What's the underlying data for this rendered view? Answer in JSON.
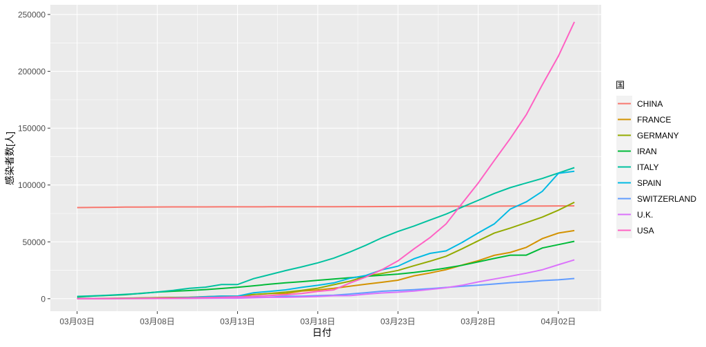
{
  "chart_data": {
    "type": "line",
    "title": "",
    "xlabel": "日付",
    "ylabel": "感染者数[人]",
    "ylim": [
      -11000,
      258500
    ],
    "grid": true,
    "legend_position": "right",
    "legend_title": "国",
    "x": [
      "03-03",
      "03-04",
      "03-05",
      "03-06",
      "03-07",
      "03-08",
      "03-09",
      "03-10",
      "03-11",
      "03-12",
      "03-13",
      "03-14",
      "03-15",
      "03-16",
      "03-17",
      "03-18",
      "03-19",
      "03-20",
      "03-21",
      "03-22",
      "03-23",
      "03-24",
      "03-25",
      "03-26",
      "03-27",
      "03-28",
      "03-29",
      "03-30",
      "03-31",
      "04-01",
      "04-02",
      "04-03"
    ],
    "x_ticks": [
      {
        "index": 0,
        "label": "03月03日"
      },
      {
        "index": 5,
        "label": "03月08日"
      },
      {
        "index": 10,
        "label": "03月13日"
      },
      {
        "index": 15,
        "label": "03月18日"
      },
      {
        "index": 20,
        "label": "03月23日"
      },
      {
        "index": 25,
        "label": "03月28日"
      },
      {
        "index": 30,
        "label": "04月02日"
      }
    ],
    "y_ticks": [
      0,
      50000,
      100000,
      150000,
      200000,
      250000
    ],
    "series": [
      {
        "name": "CHINA",
        "color": "#F8766D",
        "values": [
          80151,
          80270,
          80409,
          80552,
          80651,
          80695,
          80735,
          80754,
          80778,
          80793,
          80813,
          80824,
          80844,
          80860,
          80881,
          80894,
          80928,
          80967,
          81008,
          81054,
          81093,
          81171,
          81218,
          81285,
          81340,
          81394,
          81439,
          81470,
          81518,
          81554,
          81601,
          81661
        ]
      },
      {
        "name": "FRANCE",
        "color": "#D39200",
        "values": [
          191,
          204,
          288,
          380,
          656,
          959,
          1136,
          1219,
          1794,
          2293,
          2293,
          3681,
          4496,
          4532,
          6683,
          7715,
          9124,
          10970,
          12758,
          14463,
          16243,
          20123,
          22622,
          25600,
          29551,
          33402,
          38105,
          40708,
          45170,
          52827,
          57749,
          59929
        ]
      },
      {
        "name": "GERMANY",
        "color": "#93AA00",
        "values": [
          159,
          196,
          262,
          482,
          670,
          799,
          1040,
          1176,
          1457,
          1908,
          2078,
          3675,
          4585,
          5795,
          7272,
          9257,
          12327,
          15320,
          19848,
          22213,
          24873,
          29056,
          32986,
          37323,
          43938,
          50871,
          57695,
          62095,
          66885,
          71808,
          77872,
          84794
        ]
      },
      {
        "name": "IRAN",
        "color": "#00BA38",
        "values": [
          1501,
          2336,
          2922,
          3513,
          4747,
          5823,
          6566,
          7161,
          8042,
          9000,
          10075,
          11364,
          12729,
          13938,
          14991,
          16169,
          17361,
          18407,
          19644,
          20610,
          21638,
          23049,
          24811,
          27017,
          29406,
          32332,
          35408,
          38309,
          38309,
          44605,
          47593,
          50468
        ]
      },
      {
        "name": "ITALY",
        "color": "#00C19F",
        "values": [
          2036,
          2502,
          3089,
          3858,
          4636,
          5883,
          7375,
          9172,
          10149,
          12462,
          12462,
          17660,
          21157,
          24747,
          27980,
          31506,
          35713,
          41035,
          47021,
          53578,
          59138,
          63927,
          69176,
          74386,
          80589,
          86498,
          92472,
          97689,
          101739,
          105792,
          110574,
          115242
        ]
      },
      {
        "name": "SPAIN",
        "color": "#00B9E3",
        "values": [
          120,
          165,
          222,
          259,
          400,
          500,
          673,
          1073,
          1695,
          2277,
          2277,
          5232,
          6391,
          7798,
          9942,
          11748,
          13910,
          17963,
          20410,
          25374,
          28603,
          35136,
          39885,
          42058,
          49515,
          57786,
          65719,
          78797,
          85195,
          94417,
          110238,
          112065
        ]
      },
      {
        "name": "SWITZERLAND",
        "color": "#619CFF",
        "values": [
          42,
          56,
          90,
          114,
          214,
          268,
          337,
          374,
          491,
          652,
          652,
          1139,
          1359,
          2200,
          2200,
          2700,
          3028,
          4075,
          5294,
          6575,
          7245,
          7948,
          8795,
          9877,
          10897,
          11811,
          12928,
          14076,
          14829,
          15922,
          16605,
          17768
        ]
      },
      {
        "name": "U.K.",
        "color": "#DB72FB",
        "values": [
          40,
          51,
          86,
          116,
          164,
          207,
          274,
          322,
          384,
          459,
          459,
          802,
          1144,
          1145,
          1551,
          1960,
          2642,
          2716,
          4014,
          5067,
          5745,
          6726,
          8164,
          9640,
          11812,
          14745,
          17312,
          19780,
          22453,
          25481,
          29865,
          34173
        ]
      },
      {
        "name": "USA",
        "color": "#FF61C3",
        "values": [
          53,
          73,
          153,
          221,
          278,
          417,
          537,
          605,
          959,
          1281,
          1663,
          2179,
          2727,
          3499,
          4632,
          6421,
          7786,
          13680,
          19101,
          25493,
          33276,
          43847,
          53740,
          65778,
          83836,
          101657,
          121478,
          140886,
          161807,
          188172,
          213372,
          243453
        ]
      }
    ]
  }
}
